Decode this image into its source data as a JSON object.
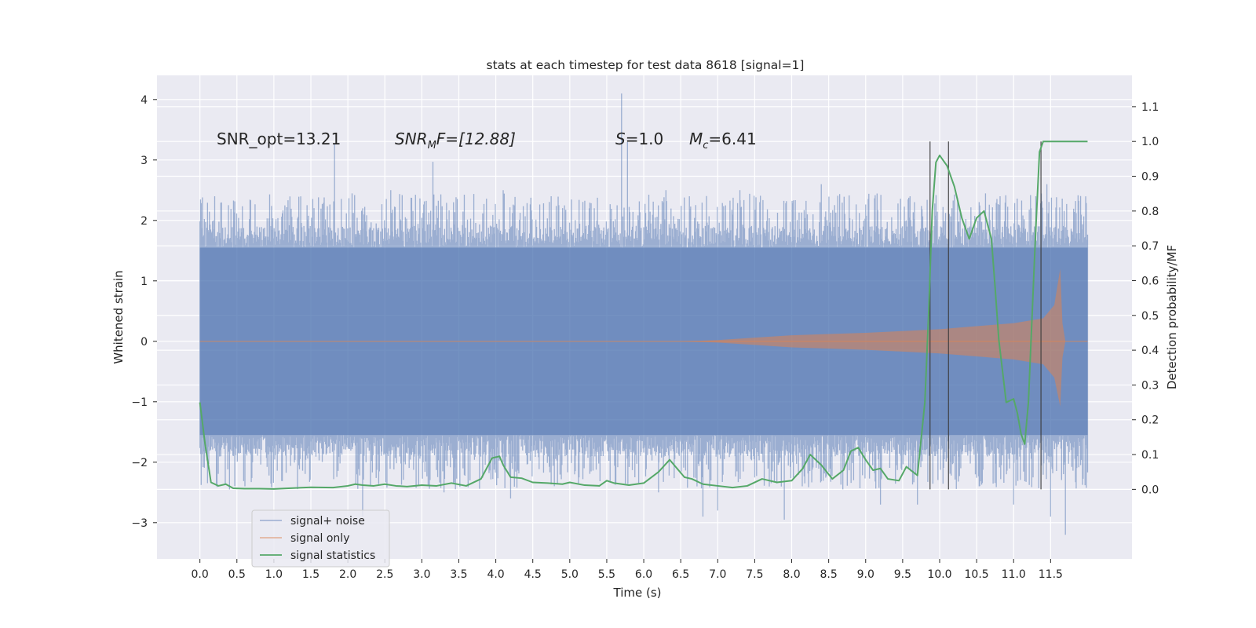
{
  "chart_data": {
    "type": "line",
    "title": "stats at each timestep for test data 8618 [signal=1]",
    "xlabel": "Time (s)",
    "ylabel": "Whitened strain",
    "ylabel_right": "Detection probability/MF",
    "xlim": [
      -0.58,
      12.6
    ],
    "ylim": [
      -3.6,
      4.4
    ],
    "ylim_right": [
      -0.2,
      1.19
    ],
    "xticks": [
      "0.0",
      "0.5",
      "1.0",
      "1.5",
      "2.0",
      "2.5",
      "3.0",
      "3.5",
      "4.0",
      "4.5",
      "5.0",
      "5.5",
      "6.0",
      "6.5",
      "7.0",
      "7.5",
      "8.0",
      "8.5",
      "9.0",
      "9.5",
      "10.0",
      "10.5",
      "11.0",
      "11.5"
    ],
    "yticks": [
      "4",
      "3",
      "2",
      "1",
      "0",
      "−1",
      "−2",
      "−3"
    ],
    "yticks_right": [
      "1.1",
      "1.0",
      "0.9",
      "0.8",
      "0.7",
      "0.6",
      "0.5",
      "0.4",
      "0.3",
      "0.2",
      "0.1",
      "0.0"
    ],
    "annotations": {
      "snr_opt": "SNR_opt=13.21",
      "snr_mf_main": "SNR",
      "snr_mf_sub": "M",
      "snr_mf_rest": "F=[12.88]",
      "s_main": "S",
      "s_rest": "=1.0",
      "mc_main": "M",
      "mc_sub": "c",
      "mc_rest": "=6.41"
    },
    "vlines": [
      9.87,
      10.12,
      11.37
    ],
    "series": [
      {
        "name": "signal+ noise",
        "color": "#4c72b0",
        "t_range": [
          0.0,
          12.0
        ],
        "band_lo": -1.55,
        "band_hi": 1.55,
        "peaks_hi": [
          [
            0.2,
            2.4
          ],
          [
            1.82,
            3.27
          ],
          [
            2.2,
            2.2
          ],
          [
            2.58,
            2.5
          ],
          [
            3.15,
            2.97
          ],
          [
            4.1,
            2.5
          ],
          [
            5.7,
            4.1
          ],
          [
            5.78,
            3.3
          ],
          [
            6.3,
            2.5
          ],
          [
            7.3,
            2.5
          ],
          [
            8.4,
            2.6
          ],
          [
            9.6,
            2.4
          ],
          [
            11.3,
            2.4
          ],
          [
            11.45,
            2.6
          ]
        ],
        "peaks_lo": [
          [
            0.05,
            -1.75
          ],
          [
            0.4,
            -2.45
          ],
          [
            2.2,
            -2.9
          ],
          [
            3.3,
            -2.5
          ],
          [
            4.2,
            -2.6
          ],
          [
            6.2,
            -2.5
          ],
          [
            6.8,
            -2.9
          ],
          [
            7.0,
            -2.8
          ],
          [
            7.9,
            -2.95
          ],
          [
            9.2,
            -2.7
          ],
          [
            9.7,
            -2.7
          ],
          [
            11.0,
            -2.7
          ],
          [
            11.7,
            -3.2
          ],
          [
            11.5,
            -2.9
          ]
        ]
      },
      {
        "name": "signal only",
        "color": "#dd8452",
        "envelope": [
          [
            0.0,
            0.0
          ],
          [
            6.5,
            0.0
          ],
          [
            7.0,
            0.02
          ],
          [
            7.5,
            0.06
          ],
          [
            8.0,
            0.1
          ],
          [
            8.5,
            0.12
          ],
          [
            9.0,
            0.14
          ],
          [
            9.5,
            0.17
          ],
          [
            10.0,
            0.2
          ],
          [
            10.5,
            0.25
          ],
          [
            11.0,
            0.3
          ],
          [
            11.4,
            0.38
          ],
          [
            11.55,
            0.6
          ],
          [
            11.63,
            1.2
          ],
          [
            11.66,
            0.3
          ],
          [
            11.7,
            0.0
          ],
          [
            12.0,
            0.0
          ]
        ]
      },
      {
        "name": "signal statistics",
        "color": "#55a868",
        "t": [
          0.0,
          0.07,
          0.15,
          0.25,
          0.35,
          0.45,
          0.6,
          0.8,
          1.0,
          1.2,
          1.5,
          1.8,
          2.0,
          2.1,
          2.2,
          2.35,
          2.5,
          2.65,
          2.8,
          3.0,
          3.2,
          3.4,
          3.6,
          3.8,
          3.95,
          4.05,
          4.1,
          4.2,
          4.35,
          4.5,
          4.7,
          4.9,
          5.0,
          5.2,
          5.4,
          5.5,
          5.6,
          5.8,
          6.0,
          6.2,
          6.35,
          6.45,
          6.55,
          6.65,
          6.8,
          7.0,
          7.2,
          7.4,
          7.6,
          7.8,
          8.0,
          8.15,
          8.25,
          8.4,
          8.55,
          8.7,
          8.8,
          8.9,
          9.0,
          9.1,
          9.2,
          9.3,
          9.45,
          9.55,
          9.7,
          9.8,
          9.85,
          9.9,
          9.95,
          10.0,
          10.1,
          10.2,
          10.3,
          10.4,
          10.5,
          10.6,
          10.7,
          10.75,
          10.8,
          10.9,
          11.0,
          11.05,
          11.1,
          11.15,
          11.2,
          11.3,
          11.35,
          11.4,
          11.45,
          11.5,
          11.6,
          11.7,
          11.8,
          11.9,
          12.0
        ],
        "p": [
          0.25,
          0.13,
          0.02,
          0.01,
          0.015,
          0.003,
          0.002,
          0.002,
          0.001,
          0.003,
          0.006,
          0.005,
          0.01,
          0.015,
          0.012,
          0.01,
          0.015,
          0.01,
          0.008,
          0.012,
          0.01,
          0.018,
          0.01,
          0.03,
          0.09,
          0.095,
          0.07,
          0.035,
          0.032,
          0.02,
          0.018,
          0.015,
          0.02,
          0.012,
          0.01,
          0.025,
          0.018,
          0.012,
          0.018,
          0.05,
          0.085,
          0.06,
          0.035,
          0.03,
          0.015,
          0.01,
          0.005,
          0.01,
          0.03,
          0.02,
          0.025,
          0.06,
          0.1,
          0.07,
          0.03,
          0.055,
          0.11,
          0.12,
          0.085,
          0.055,
          0.06,
          0.03,
          0.025,
          0.065,
          0.04,
          0.25,
          0.5,
          0.8,
          0.94,
          0.96,
          0.93,
          0.87,
          0.78,
          0.72,
          0.78,
          0.8,
          0.72,
          0.58,
          0.43,
          0.25,
          0.26,
          0.22,
          0.16,
          0.13,
          0.25,
          0.75,
          0.97,
          1.0,
          1.0,
          1.0,
          1.0,
          1.0,
          1.0,
          1.0,
          1.0
        ]
      }
    ],
    "legend": {
      "placement": "lower-left",
      "entries": [
        "signal+ noise",
        "signal only",
        "signal statistics"
      ]
    }
  }
}
